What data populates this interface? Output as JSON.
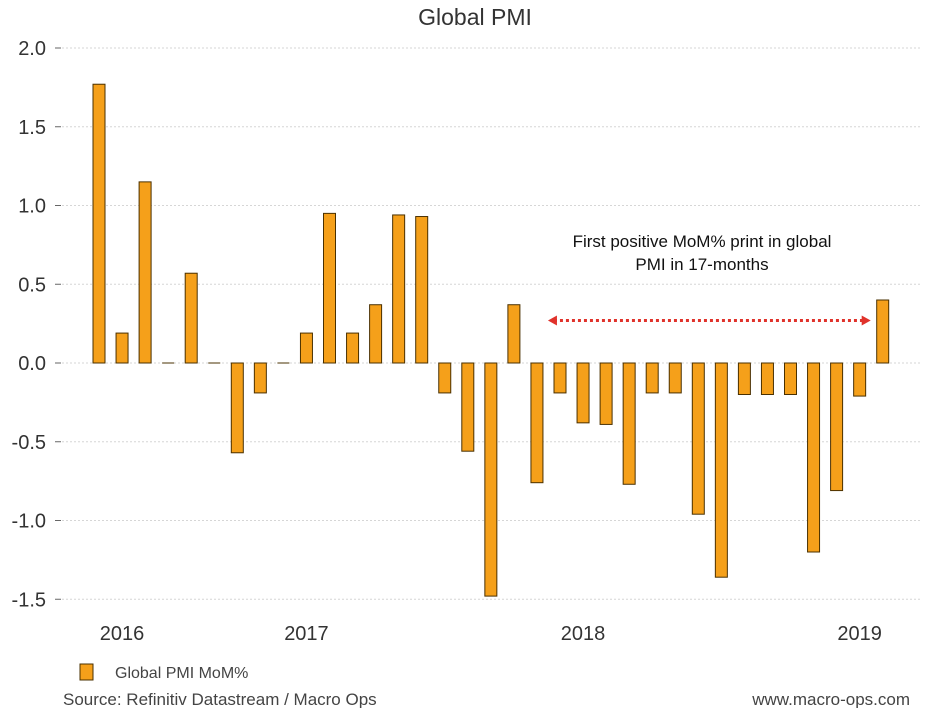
{
  "chart_data": {
    "type": "bar",
    "title": "Global PMI",
    "xlabel": "",
    "ylabel": "",
    "ylim": [
      -1.6,
      2.0
    ],
    "yticks": [
      2.0,
      1.5,
      1.0,
      0.5,
      0.0,
      -0.5,
      -1.0,
      -1.5
    ],
    "ytick_labels": [
      "2.0",
      "1.5",
      "1.0",
      "0.5",
      "0.0",
      "-0.5",
      "-1.0",
      "-1.5"
    ],
    "x_tick_labels": [
      {
        "label": "2016",
        "month_index": 1
      },
      {
        "label": "2017",
        "month_index": 9
      },
      {
        "label": "2018",
        "month_index": 21
      },
      {
        "label": "2019",
        "month_index": 33
      }
    ],
    "series": [
      {
        "name": "Global PMI MoM%",
        "color": "#f5a01a",
        "values": [
          1.77,
          0.19,
          1.15,
          0.0,
          0.57,
          0.0,
          -0.57,
          -0.19,
          0.0,
          0.19,
          0.95,
          0.19,
          0.37,
          0.94,
          0.93,
          -0.19,
          -0.56,
          -1.48,
          0.37,
          -0.76,
          -0.19,
          -0.38,
          -0.39,
          -0.77,
          -0.19,
          -0.19,
          -0.96,
          -1.36,
          -0.2,
          -0.2,
          -0.2,
          -1.2,
          -0.81,
          -0.21,
          0.4
        ]
      }
    ],
    "annotation": {
      "lines": [
        "First positive MoM% print in global",
        "PMI in 17-months"
      ],
      "arrow": {
        "from_month_index": 19,
        "to_month_index": 34,
        "value": 0.27,
        "color": "#e0322b"
      }
    },
    "legend": {
      "position": "bottom-left",
      "label": "Global PMI MoM%"
    },
    "grid": true
  },
  "footer": {
    "source": "Source: Refinitiv Datastream / Macro Ops",
    "website": "www.macro-ops.com"
  }
}
